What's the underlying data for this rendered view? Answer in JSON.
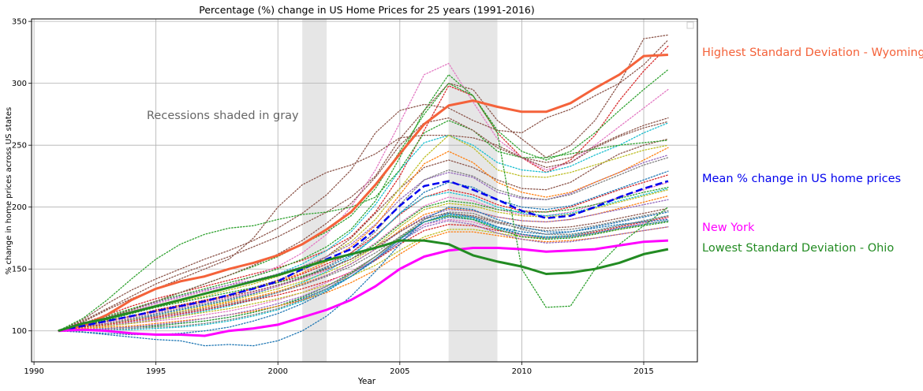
{
  "chart_data": {
    "type": "line",
    "title": "Percentage (%) change in US Home Prices for 25 years (1991-2016)",
    "xlabel": "Year",
    "ylabel": "% change in home prices across US states",
    "xlim": [
      1989.9,
      2017.2
    ],
    "ylim": [
      75,
      352
    ],
    "xticks": [
      1990,
      1995,
      2000,
      2005,
      2010,
      2015
    ],
    "yticks": [
      100,
      150,
      200,
      250,
      300,
      350
    ],
    "grid": true,
    "annotation": "Recessions shaded in gray",
    "recessions": [
      [
        2001,
        2002
      ],
      [
        2007,
        2009
      ]
    ],
    "x": [
      1991,
      1992,
      1993,
      1994,
      1995,
      1996,
      1997,
      1998,
      1999,
      2000,
      2001,
      2002,
      2003,
      2004,
      2005,
      2006,
      2007,
      2008,
      2009,
      2010,
      2011,
      2012,
      2013,
      2014,
      2015,
      2016
    ],
    "series": [
      {
        "name": "Highest Standard Deviation - Wyoming",
        "color": "#f4623a",
        "style": "solid",
        "width": 3,
        "values": [
          100,
          104,
          113,
          125,
          134,
          140,
          144,
          150,
          155,
          161,
          170,
          182,
          196,
          218,
          243,
          267,
          282,
          286,
          281,
          277,
          277,
          284,
          296,
          307,
          322,
          323
        ]
      },
      {
        "name": "Mean % change in US home prices",
        "color": "#0000ee",
        "style": "dashed",
        "width": 2.5,
        "values": [
          100,
          104,
          108,
          112,
          116,
          120,
          124,
          129,
          134,
          140,
          150,
          158,
          166,
          182,
          201,
          217,
          221,
          214,
          206,
          197,
          191,
          193,
          200,
          208,
          215,
          221
        ]
      },
      {
        "name": "New York",
        "color": "#ff00ff",
        "style": "solid",
        "width": 3,
        "values": [
          100,
          101,
          100,
          98,
          97,
          97,
          96,
          100,
          102,
          105,
          111,
          117,
          125,
          136,
          150,
          160,
          165,
          167,
          167,
          166,
          164,
          165,
          166,
          169,
          172,
          173
        ]
      },
      {
        "name": "Lowest Standard Deviation - Ohio",
        "color": "#228b22",
        "style": "solid",
        "width": 3,
        "values": [
          100,
          106,
          110,
          115,
          120,
          125,
          130,
          135,
          140,
          145,
          151,
          157,
          162,
          167,
          173,
          173,
          170,
          161,
          156,
          152,
          146,
          147,
          150,
          155,
          162,
          166
        ]
      }
    ],
    "background_series": [
      {
        "color": "#8c564b",
        "values": [
          100,
          108,
          118,
          128,
          138,
          146,
          153,
          160,
          168,
          176,
          186,
          196,
          208,
          225,
          255,
          278,
          300,
          295,
          270,
          255,
          240,
          250,
          270,
          300,
          336,
          339
        ]
      },
      {
        "color": "#d62728",
        "values": [
          100,
          106,
          113,
          120,
          126,
          131,
          136,
          141,
          146,
          151,
          157,
          165,
          176,
          196,
          225,
          262,
          298,
          290,
          260,
          240,
          228,
          238,
          258,
          286,
          310,
          330
        ]
      },
      {
        "color": "#e377c2",
        "values": [
          100,
          104,
          110,
          116,
          122,
          127,
          132,
          137,
          144,
          152,
          163,
          178,
          200,
          230,
          268,
          307,
          316,
          285,
          255,
          240,
          230,
          236,
          250,
          265,
          280,
          295
        ]
      },
      {
        "color": "#2ca02c",
        "values": [
          100,
          106,
          112,
          118,
          124,
          129,
          134,
          139,
          144,
          150,
          158,
          168,
          182,
          205,
          240,
          278,
          307,
          290,
          262,
          245,
          238,
          245,
          260,
          278,
          295,
          311
        ]
      },
      {
        "color": "#8c564b",
        "values": [
          100,
          109,
          122,
          133,
          142,
          150,
          158,
          165,
          173,
          183,
          195,
          210,
          230,
          260,
          278,
          283,
          280,
          270,
          262,
          260,
          272,
          279,
          290,
          300,
          315,
          335
        ]
      },
      {
        "color": "#8c564b",
        "values": [
          100,
          107,
          117,
          126,
          134,
          142,
          150,
          158,
          175,
          200,
          218,
          228,
          234,
          243,
          256,
          258,
          258,
          256,
          250,
          240,
          232,
          236,
          248,
          257,
          264,
          269
        ]
      },
      {
        "color": "#17becf",
        "values": [
          100,
          105,
          110,
          115,
          120,
          125,
          130,
          135,
          140,
          146,
          154,
          165,
          180,
          202,
          230,
          252,
          258,
          250,
          236,
          230,
          228,
          233,
          242,
          250,
          260,
          268
        ]
      },
      {
        "color": "#8c564b",
        "values": [
          100,
          104,
          108,
          112,
          116,
          120,
          124,
          129,
          135,
          141,
          149,
          160,
          175,
          195,
          215,
          232,
          238,
          232,
          222,
          215,
          214,
          220,
          232,
          243,
          250,
          255
        ]
      },
      {
        "color": "#2ca02c",
        "values": [
          100,
          110,
          125,
          142,
          158,
          170,
          178,
          183,
          185,
          190,
          194,
          196,
          200,
          208,
          230,
          260,
          270,
          262,
          245,
          240,
          240,
          243,
          247,
          250,
          252,
          254
        ]
      },
      {
        "color": "#bcbd22",
        "values": [
          100,
          104,
          109,
          114,
          119,
          124,
          128,
          133,
          138,
          144,
          151,
          160,
          172,
          190,
          215,
          240,
          258,
          248,
          230,
          225,
          224,
          228,
          234,
          240,
          246,
          250
        ]
      },
      {
        "color": "#9467bd",
        "values": [
          100,
          105,
          111,
          117,
          123,
          128,
          133,
          137,
          141,
          146,
          152,
          160,
          170,
          186,
          206,
          222,
          228,
          224,
          212,
          207,
          206,
          211,
          220,
          228,
          236,
          242
        ]
      },
      {
        "color": "#ff7f0e",
        "values": [
          100,
          104,
          108,
          112,
          116,
          120,
          124,
          129,
          134,
          140,
          147,
          156,
          168,
          185,
          210,
          235,
          245,
          236,
          220,
          212,
          208,
          212,
          220,
          228,
          238,
          248
        ]
      },
      {
        "color": "#7f7f7f",
        "values": [
          100,
          103,
          106,
          110,
          114,
          118,
          122,
          126,
          131,
          136,
          143,
          152,
          163,
          180,
          202,
          222,
          230,
          225,
          214,
          208,
          206,
          210,
          218,
          226,
          234,
          240
        ]
      },
      {
        "color": "#1f77b4",
        "values": [
          100,
          103,
          106,
          109,
          113,
          117,
          121,
          125,
          130,
          136,
          143,
          151,
          161,
          176,
          195,
          212,
          220,
          216,
          206,
          200,
          198,
          201,
          208,
          215,
          222,
          229
        ]
      },
      {
        "color": "#d62728",
        "values": [
          100,
          104,
          108,
          112,
          117,
          121,
          125,
          129,
          134,
          139,
          146,
          154,
          163,
          177,
          194,
          208,
          214,
          210,
          202,
          197,
          196,
          200,
          207,
          214,
          220,
          226
        ]
      },
      {
        "color": "#e377c2",
        "values": [
          100,
          103,
          107,
          111,
          115,
          119,
          123,
          127,
          131,
          136,
          142,
          149,
          158,
          171,
          187,
          201,
          208,
          205,
          198,
          194,
          193,
          196,
          202,
          208,
          214,
          220
        ]
      },
      {
        "color": "#2ca02c",
        "values": [
          100,
          104,
          109,
          114,
          119,
          123,
          127,
          131,
          135,
          139,
          144,
          150,
          158,
          170,
          186,
          200,
          205,
          203,
          198,
          196,
          196,
          198,
          202,
          207,
          212,
          216
        ]
      },
      {
        "color": "#bcbd22",
        "values": [
          100,
          103,
          106,
          109,
          112,
          116,
          120,
          124,
          129,
          134,
          140,
          147,
          156,
          168,
          184,
          198,
          203,
          201,
          196,
          193,
          192,
          194,
          199,
          204,
          209,
          214
        ]
      },
      {
        "color": "#17becf",
        "values": [
          100,
          102,
          104,
          106,
          109,
          112,
          116,
          120,
          125,
          131,
          139,
          148,
          160,
          176,
          195,
          208,
          212,
          208,
          200,
          195,
          193,
          195,
          200,
          205,
          210,
          215
        ]
      },
      {
        "color": "#ff7f0e",
        "values": [
          100,
          103,
          106,
          109,
          112,
          115,
          119,
          123,
          127,
          132,
          138,
          145,
          154,
          166,
          181,
          194,
          199,
          197,
          192,
          189,
          188,
          190,
          194,
          199,
          204,
          209
        ]
      },
      {
        "color": "#9467bd",
        "values": [
          100,
          102,
          104,
          107,
          110,
          113,
          117,
          121,
          126,
          131,
          137,
          145,
          154,
          166,
          180,
          192,
          198,
          197,
          192,
          189,
          188,
          190,
          194,
          198,
          202,
          206
        ]
      },
      {
        "color": "#8c564b",
        "values": [
          100,
          104,
          108,
          112,
          116,
          120,
          124,
          128,
          132,
          137,
          143,
          150,
          158,
          168,
          180,
          191,
          195,
          193,
          188,
          185,
          183,
          184,
          187,
          191,
          195,
          199
        ]
      },
      {
        "color": "#7f7f7f",
        "values": [
          100,
          103,
          106,
          109,
          112,
          115,
          118,
          122,
          126,
          131,
          137,
          144,
          152,
          163,
          176,
          188,
          193,
          192,
          187,
          183,
          181,
          182,
          185,
          189,
          193,
          197
        ]
      },
      {
        "color": "#1f77b4",
        "values": [
          100,
          101,
          102,
          103,
          104,
          106,
          108,
          111,
          115,
          120,
          126,
          134,
          144,
          157,
          172,
          186,
          192,
          190,
          184,
          180,
          178,
          180,
          184,
          188,
          192,
          196
        ]
      },
      {
        "color": "#d62728",
        "values": [
          100,
          103,
          105,
          108,
          111,
          114,
          117,
          121,
          125,
          129,
          134,
          140,
          147,
          157,
          170,
          181,
          186,
          185,
          181,
          178,
          176,
          177,
          180,
          184,
          188,
          192
        ]
      },
      {
        "color": "#e377c2",
        "values": [
          100,
          102,
          104,
          106,
          108,
          110,
          113,
          116,
          120,
          125,
          131,
          139,
          148,
          160,
          174,
          186,
          190,
          188,
          182,
          177,
          175,
          176,
          179,
          183,
          187,
          191
        ]
      },
      {
        "color": "#bcbd22",
        "values": [
          100,
          102,
          104,
          106,
          109,
          112,
          115,
          118,
          122,
          126,
          131,
          137,
          144,
          153,
          165,
          176,
          182,
          182,
          179,
          176,
          175,
          176,
          179,
          182,
          186,
          189
        ]
      },
      {
        "color": "#17becf",
        "values": [
          100,
          101,
          101,
          101,
          102,
          103,
          105,
          108,
          112,
          117,
          124,
          133,
          144,
          158,
          174,
          188,
          194,
          191,
          183,
          178,
          176,
          177,
          181,
          185,
          189,
          193
        ]
      },
      {
        "color": "#2ca02c",
        "values": [
          100,
          101,
          102,
          103,
          104,
          106,
          108,
          111,
          115,
          120,
          127,
          136,
          147,
          160,
          175,
          188,
          193,
          190,
          182,
          176,
          174,
          175,
          178,
          182,
          185,
          188
        ]
      },
      {
        "color": "#ff7f0e",
        "values": [
          100,
          102,
          103,
          104,
          106,
          108,
          110,
          113,
          116,
          120,
          125,
          131,
          139,
          149,
          162,
          174,
          180,
          180,
          177,
          174,
          172,
          173,
          175,
          178,
          181,
          184
        ]
      },
      {
        "color": "#9467bd",
        "values": [
          100,
          101,
          102,
          103,
          105,
          107,
          110,
          113,
          117,
          122,
          128,
          136,
          146,
          158,
          172,
          184,
          189,
          186,
          179,
          174,
          171,
          172,
          175,
          178,
          181,
          184
        ]
      },
      {
        "color": "#1f77b4",
        "values": [
          100,
          99,
          98,
          97,
          97,
          98,
          100,
          103,
          108,
          114,
          122,
          132,
          144,
          158,
          174,
          188,
          195,
          192,
          184,
          178,
          175,
          176,
          179,
          183,
          186,
          189
        ]
      },
      {
        "color": "#1f77b4",
        "values": [
          100,
          99,
          97,
          95,
          93,
          92,
          88,
          89,
          88,
          92,
          100,
          112,
          128,
          148,
          170,
          190,
          200,
          198,
          190,
          184,
          180,
          180,
          183,
          186,
          188,
          190
        ]
      },
      {
        "color": "#2ca02c",
        "values": [
          100,
          104,
          110,
          117,
          124,
          131,
          138,
          145,
          152,
          160,
          170,
          180,
          193,
          215,
          245,
          275,
          300,
          290,
          260,
          150,
          119,
          120,
          150,
          170,
          185,
          200
        ]
      },
      {
        "color": "#7f7f7f",
        "values": [
          100,
          100,
          101,
          102,
          103,
          104,
          106,
          109,
          113,
          118,
          125,
          134,
          146,
          160,
          176,
          190,
          196,
          195,
          188,
          182,
          178,
          178,
          181,
          185,
          189,
          193
        ]
      },
      {
        "color": "#8c564b",
        "values": [
          100,
          105,
          111,
          117,
          124,
          131,
          138,
          145,
          153,
          162,
          173,
          187,
          203,
          224,
          250,
          268,
          272,
          262,
          248,
          240,
          236,
          240,
          249,
          258,
          266,
          272
        ]
      }
    ]
  }
}
